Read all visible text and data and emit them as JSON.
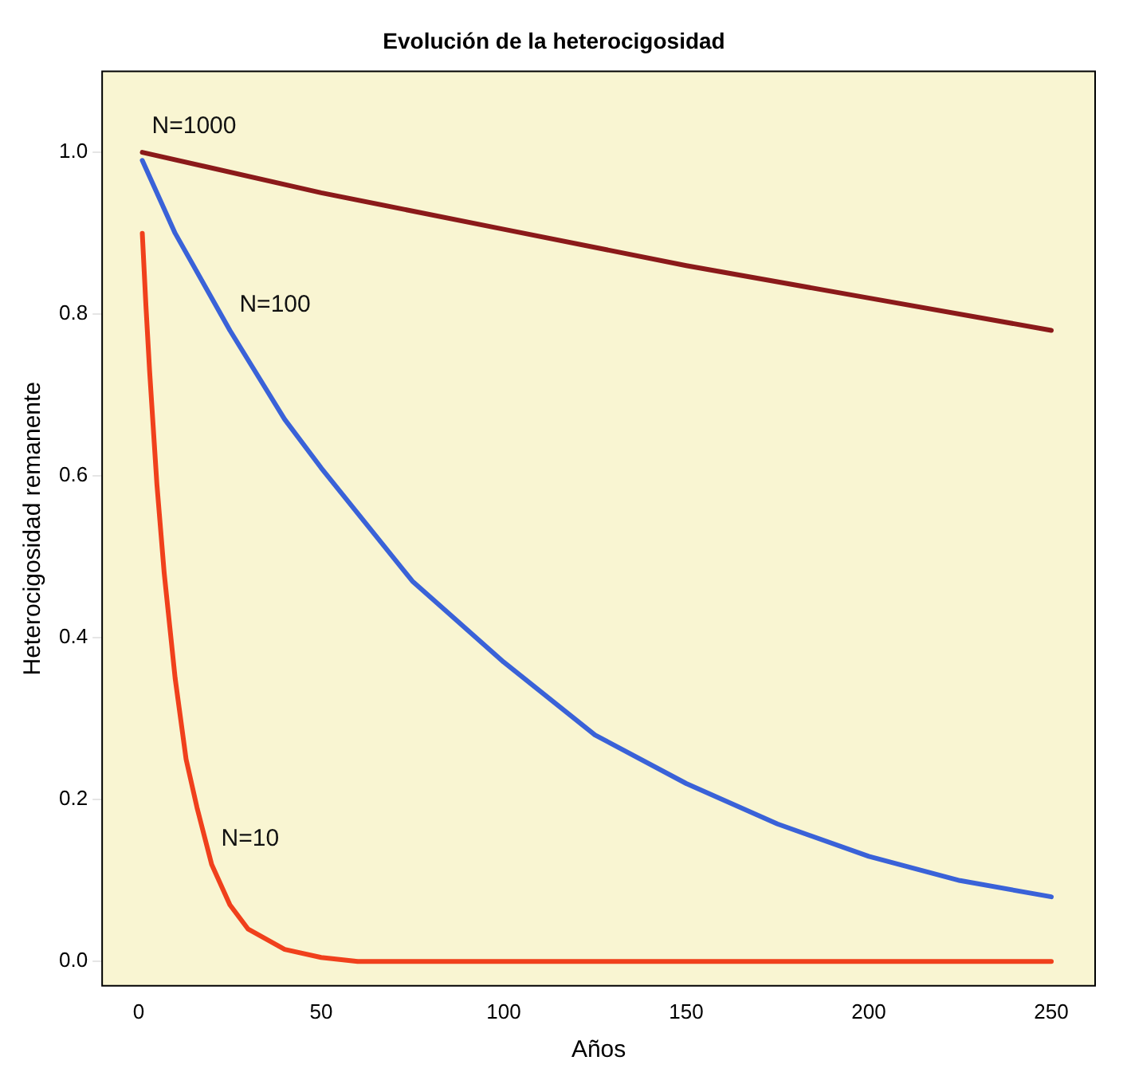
{
  "chart_data": {
    "type": "line",
    "title": "Evolución de la heterocigosidad",
    "xlabel": "Años",
    "ylabel": "Heterocigosidad remanente",
    "xlim": [
      -10,
      262
    ],
    "xticks": [
      0,
      50,
      100,
      150,
      200,
      250
    ],
    "ylim": [
      -0.03,
      1.1
    ],
    "yticks": [
      {
        "value": 0,
        "label": "0.0"
      },
      {
        "value": 0.2,
        "label": "0.2"
      },
      {
        "value": 0.4,
        "label": "0.4"
      },
      {
        "value": 0.6,
        "label": "0.6"
      },
      {
        "value": 0.8,
        "label": "0.8"
      },
      {
        "value": 1,
        "label": "1.0"
      }
    ],
    "grid": false,
    "legend": false,
    "marker": "none",
    "line_style": "solid",
    "series": [
      {
        "name": "N=1000",
        "color": "#8b1a1a",
        "x": [
          1,
          50,
          100,
          150,
          200,
          250
        ],
        "values": [
          1.0,
          0.95,
          0.905,
          0.86,
          0.82,
          0.78
        ]
      },
      {
        "name": "N=100",
        "color": "#3a62d8",
        "x": [
          1,
          10,
          25,
          40,
          50,
          75,
          100,
          125,
          150,
          175,
          200,
          225,
          250
        ],
        "values": [
          0.99,
          0.9,
          0.78,
          0.67,
          0.61,
          0.47,
          0.37,
          0.28,
          0.22,
          0.17,
          0.13,
          0.1,
          0.08
        ]
      },
      {
        "name": "N=10",
        "color": "#f0401c",
        "x": [
          1,
          2,
          3,
          5,
          7,
          10,
          13,
          16,
          20,
          25,
          30,
          40,
          50,
          60,
          80,
          100,
          150,
          200,
          250
        ],
        "values": [
          0.9,
          0.81,
          0.73,
          0.59,
          0.48,
          0.35,
          0.25,
          0.19,
          0.12,
          0.07,
          0.04,
          0.015,
          0.005,
          0,
          0,
          0,
          0,
          0,
          0
        ]
      }
    ]
  }
}
